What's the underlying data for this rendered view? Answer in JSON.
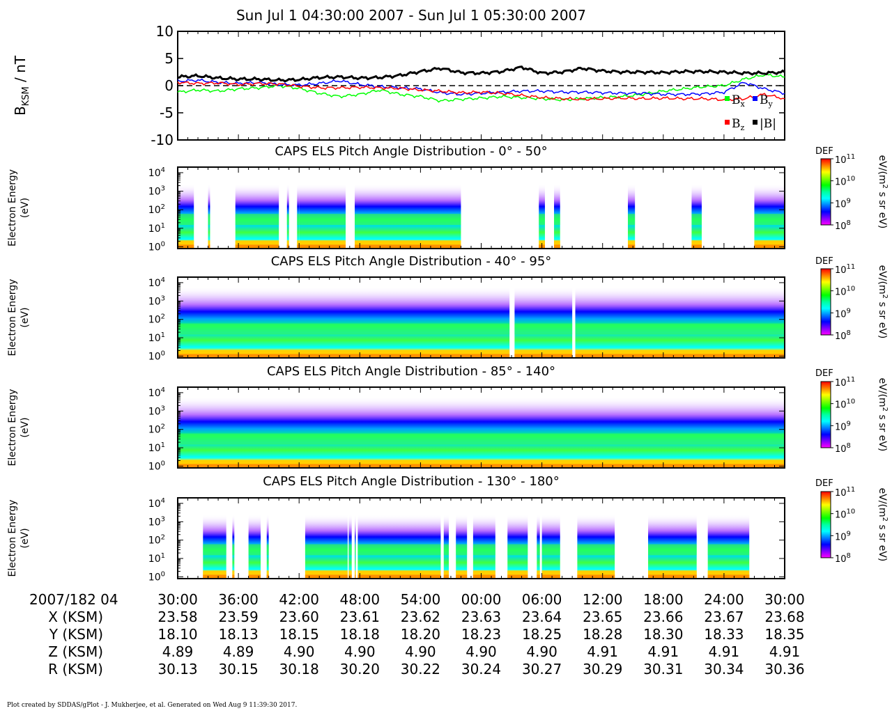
{
  "title": "Sun Jul 1 04:30:00 2007 - Sun Jul 1 05:30:00 2007",
  "footer": "Plot created by SDDAS/gPlot - J. Mukherjee, et al.  Generated on Wed Aug 9 11:39:30 2017.",
  "mag_panel": {
    "ylabel_main": "B",
    "ylabel_sub": "KSM",
    "ylabel_unit": " / nT",
    "yticks": [
      "10",
      "5",
      "0",
      "-5",
      "-10"
    ],
    "ylim": [
      -10,
      10
    ],
    "legend": [
      {
        "label": "B",
        "sub": "x",
        "color": "#00ff00"
      },
      {
        "label": "B",
        "sub": "y",
        "color": "#0000ff"
      },
      {
        "label": "B",
        "sub": "z",
        "color": "#ff0000"
      },
      {
        "label": "|B|",
        "sub": "",
        "color": "#000000"
      }
    ]
  },
  "spectrogram_ylabel_1": "Electron Energy",
  "spectrogram_ylabel_2": "(eV)",
  "spectrogram_yticks": [
    {
      "base": "10",
      "exp": "4"
    },
    {
      "base": "10",
      "exp": "3"
    },
    {
      "base": "10",
      "exp": "2"
    },
    {
      "base": "10",
      "exp": "1"
    },
    {
      "base": "10",
      "exp": "0"
    }
  ],
  "spectrogram_panels": [
    {
      "title": "CAPS ELS Pitch Angle Distribution - 0° - 50°"
    },
    {
      "title": "CAPS ELS Pitch Angle Distribution - 40° - 95°"
    },
    {
      "title": "CAPS ELS Pitch Angle Distribution - 85° - 140°"
    },
    {
      "title": "CAPS ELS Pitch Angle Distribution - 130° - 180°"
    }
  ],
  "colorbar": {
    "label": "DEF",
    "unit_main": "eV/(m",
    "unit_sup": "2",
    "unit_rest": " s sr eV)",
    "ticks": [
      {
        "base": "10",
        "exp": "11"
      },
      {
        "base": "10",
        "exp": "10"
      },
      {
        "base": "10",
        "exp": "9"
      },
      {
        "base": "10",
        "exp": "8"
      }
    ],
    "colors": [
      "#ff0000",
      "#ff8000",
      "#ffff00",
      "#80ff00",
      "#00ff00",
      "#00ffa0",
      "#00ffff",
      "#0080ff",
      "#0000ff",
      "#8000ff",
      "#ff00ff"
    ]
  },
  "ephemeris": {
    "date_label": "2007/182 04",
    "times": [
      "30:00",
      "36:00",
      "42:00",
      "48:00",
      "54:00",
      "00:00",
      "06:00",
      "12:00",
      "18:00",
      "24:00",
      "30:00"
    ],
    "rows": [
      {
        "label": "X (KSM)",
        "values": [
          "23.58",
          "23.59",
          "23.60",
          "23.61",
          "23.62",
          "23.63",
          "23.64",
          "23.65",
          "23.66",
          "23.67",
          "23.68"
        ]
      },
      {
        "label": "Y (KSM)",
        "values": [
          "18.10",
          "18.13",
          "18.15",
          "18.18",
          "18.20",
          "18.23",
          "18.25",
          "18.28",
          "18.30",
          "18.33",
          "18.35"
        ]
      },
      {
        "label": "Z (KSM)",
        "values": [
          "4.89",
          "4.89",
          "4.90",
          "4.90",
          "4.90",
          "4.90",
          "4.90",
          "4.91",
          "4.91",
          "4.91",
          "4.91"
        ]
      },
      {
        "label": "R (KSM)",
        "values": [
          "30.13",
          "30.15",
          "30.18",
          "30.20",
          "30.22",
          "30.24",
          "30.27",
          "30.29",
          "30.31",
          "30.34",
          "30.36"
        ]
      }
    ]
  },
  "chart_data": [
    {
      "type": "line",
      "x_unit": "minutes after 2007-07-01 04:30",
      "xlim": [
        0,
        60
      ],
      "ylim": [
        -10,
        10
      ],
      "ylabel": "B KSM / nT",
      "series": [
        {
          "name": "Bx",
          "color": "#00ff00",
          "x": [
            0,
            2,
            4,
            6,
            8,
            10,
            12,
            14,
            16,
            18,
            20,
            22,
            24,
            26,
            28,
            30,
            32,
            34,
            36,
            38,
            40,
            42,
            44,
            46,
            48,
            50,
            52,
            54,
            56,
            58,
            60
          ],
          "y": [
            -1.2,
            -0.8,
            -1.0,
            -0.6,
            -0.4,
            0,
            -0.5,
            -1.4,
            -2.0,
            -1.6,
            -0.8,
            -1.6,
            -2.0,
            -2.8,
            -2.5,
            -2.3,
            -2.0,
            -2.2,
            -2.4,
            -2.6,
            -2.4,
            -2.2,
            -2.0,
            -1.6,
            -1.0,
            -0.6,
            -0.2,
            0,
            1.2,
            2.0,
            1.6
          ]
        },
        {
          "name": "By",
          "color": "#0000ff",
          "x": [
            0,
            2,
            4,
            6,
            8,
            10,
            12,
            14,
            16,
            18,
            20,
            22,
            24,
            26,
            28,
            30,
            32,
            34,
            36,
            38,
            40,
            42,
            44,
            46,
            48,
            50,
            52,
            54,
            56,
            58,
            60
          ],
          "y": [
            0.8,
            1.0,
            0.6,
            0.4,
            0.6,
            0.2,
            0.1,
            0.4,
            0.9,
            0.2,
            -0.2,
            -0.4,
            -0.6,
            -1.3,
            -1.6,
            -1.4,
            -1.2,
            -1.0,
            -1.0,
            -1.2,
            -1.2,
            -1.3,
            -1.4,
            -1.4,
            -1.6,
            -1.6,
            -1.5,
            -1.2,
            0.6,
            -0.6,
            -1.4
          ]
        },
        {
          "name": "Bz",
          "color": "#ff0000",
          "x": [
            0,
            2,
            4,
            6,
            8,
            10,
            12,
            14,
            16,
            18,
            20,
            22,
            24,
            26,
            28,
            30,
            32,
            34,
            36,
            38,
            40,
            42,
            44,
            46,
            48,
            50,
            52,
            54,
            56,
            58,
            60
          ],
          "y": [
            0.6,
            0.4,
            0.5,
            0.2,
            0.4,
            0.3,
            -0.1,
            -0.4,
            -0.4,
            -0.3,
            -0.4,
            -0.5,
            -0.8,
            -1.0,
            -1.3,
            -1.2,
            -1.4,
            -1.8,
            -2.2,
            -2.4,
            -2.5,
            -2.4,
            -2.3,
            -2.4,
            -2.3,
            -2.4,
            -2.4,
            -2.6,
            -2.4,
            -1.6,
            -2.4
          ]
        },
        {
          "name": "|B|",
          "color": "#000000",
          "x": [
            0,
            2,
            4,
            6,
            8,
            10,
            12,
            14,
            16,
            18,
            20,
            22,
            24,
            26,
            28,
            30,
            32,
            34,
            36,
            38,
            40,
            42,
            44,
            46,
            48,
            50,
            52,
            54,
            56,
            58,
            60
          ],
          "y": [
            1.6,
            1.8,
            1.4,
            1.2,
            1.2,
            1.0,
            1.1,
            1.5,
            1.6,
            1.4,
            1.5,
            1.9,
            2.6,
            3.2,
            2.4,
            2.3,
            2.6,
            3.4,
            2.3,
            2.5,
            3.2,
            2.7,
            2.5,
            2.5,
            2.4,
            2.6,
            2.6,
            2.5,
            2.3,
            2.3,
            2.5
          ]
        }
      ]
    },
    {
      "type": "heatmap",
      "title": "CAPS ELS Pitch Angle Distribution - 0° - 50°",
      "ylabel": "Electron Energy (eV)",
      "yscale": "log",
      "xlim": [
        0,
        60
      ],
      "ylim": [
        0.8,
        20000
      ],
      "colorbar": {
        "label": "DEF",
        "unit": "eV/(m2 s sr eV)",
        "range": [
          100000000.0,
          100000000000.0
        ]
      },
      "data_intervals_min": [
        [
          0,
          1.6
        ],
        [
          3,
          3.2
        ],
        [
          5.7,
          10
        ],
        [
          10.8,
          11
        ],
        [
          11.8,
          12
        ],
        [
          12,
          16.6
        ],
        [
          17.5,
          28
        ],
        [
          35.7,
          36.3
        ],
        [
          37.2,
          37.8
        ],
        [
          44.5,
          45.2
        ],
        [
          50.8,
          51.8
        ],
        [
          57,
          61
        ]
      ]
    },
    {
      "type": "heatmap",
      "title": "CAPS ELS Pitch Angle Distribution - 40° - 95°",
      "ylabel": "Electron Energy (eV)",
      "yscale": "log",
      "xlim": [
        0,
        60
      ],
      "ylim": [
        0.8,
        20000
      ],
      "colorbar": {
        "label": "DEF",
        "unit": "eV/(m2 s sr eV)",
        "range": [
          100000000.0,
          100000000000.0
        ]
      },
      "data_intervals_min": [
        [
          0,
          32.8
        ],
        [
          33.3,
          39
        ],
        [
          39.3,
          60
        ]
      ]
    },
    {
      "type": "heatmap",
      "title": "CAPS ELS Pitch Angle Distribution - 85° - 140°",
      "ylabel": "Electron Energy (eV)",
      "yscale": "log",
      "xlim": [
        0,
        60
      ],
      "ylim": [
        0.8,
        20000
      ],
      "colorbar": {
        "label": "DEF",
        "unit": "eV/(m2 s sr eV)",
        "range": [
          100000000.0,
          100000000000.0
        ]
      },
      "data_intervals_min": [
        [
          0,
          60
        ]
      ]
    },
    {
      "type": "heatmap",
      "title": "CAPS ELS Pitch Angle Distribution - 130° - 180°",
      "ylabel": "Electron Energy (eV)",
      "yscale": "log",
      "xlim": [
        0,
        60
      ],
      "ylim": [
        0.8,
        20000
      ],
      "colorbar": {
        "label": "DEF",
        "unit": "eV/(m2 s sr eV)",
        "range": [
          100000000.0,
          100000000000.0
        ]
      },
      "data_intervals_min": [
        [
          2.5,
          4.8
        ],
        [
          5.4,
          5.6
        ],
        [
          7,
          8.2
        ],
        [
          8.8,
          9
        ],
        [
          12.6,
          16.8
        ],
        [
          16.9,
          17.2
        ],
        [
          17.5,
          17.6
        ],
        [
          17.8,
          26
        ],
        [
          26.3,
          26.8
        ],
        [
          27.5,
          28.6
        ],
        [
          29.2,
          31.4
        ],
        [
          32.6,
          34.6
        ],
        [
          35.5,
          35.8
        ],
        [
          36,
          37.8
        ],
        [
          39.5,
          43.2
        ],
        [
          46.5,
          51.3
        ],
        [
          52.4,
          56.5
        ]
      ]
    }
  ]
}
